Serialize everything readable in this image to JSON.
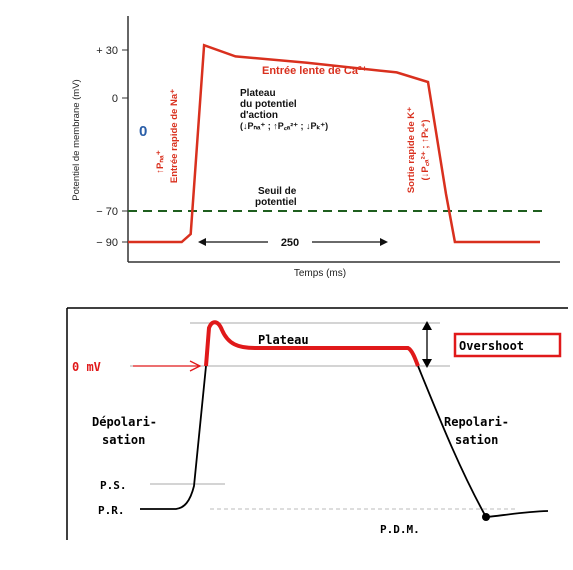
{
  "top_chart": {
    "ylabel": "Potentiel de membrane (mV)",
    "xlabel": "Temps (ms)",
    "yticks": [
      "+ 30",
      "0",
      "− 70",
      "− 90"
    ],
    "zero_marker": "0",
    "annotations": {
      "ca_entry": "Entrée lente de Ca²⁺",
      "plateau_1": "Plateau",
      "plateau_2": "du potentiel",
      "plateau_3": "d'action",
      "plateau_4": "(↓Pₙₐ⁺ ; ↑P꜀ₐ²⁺ ; ↓Pₖ⁺)",
      "seuil_1": "Seuil de",
      "seuil_2": "potentiel",
      "na_entry_1": "Entrée rapide de Na⁺",
      "na_entry_2": "↑Pₙₐ⁺",
      "k_exit_1": "Sortie rapide de K⁺",
      "k_exit_2": "(↓P꜀ₐ²⁺ ; ↑Pₖ⁺)",
      "duration": "250"
    },
    "colors": {
      "trace": "#d9301e",
      "threshold": "#1f5e1f",
      "text_red": "#d9301e",
      "marker": "#2a5ea8"
    }
  },
  "bottom_chart": {
    "labels": {
      "plateau": "Plateau",
      "overshoot": "Overshoot",
      "zero_mv": "0 mV",
      "depol_1": "Dépolari-",
      "depol_2": "sation",
      "repol_1": "Repolari-",
      "repol_2": "sation",
      "ps": "P.S.",
      "pr": "P.R.",
      "pdm": "P.D.M."
    },
    "colors": {
      "highlight": "#e0191a",
      "trace": "#000000"
    }
  },
  "chart_data": [
    {
      "type": "line",
      "title": "",
      "xlabel": "Temps (ms)",
      "ylabel": "Potentiel de membrane (mV)",
      "ylim": [
        -100,
        40
      ],
      "yticks": [
        30,
        0,
        -70,
        -90
      ],
      "series": [
        {
          "name": "",
          "x": [
            0,
            60,
            70,
            85,
            120,
            200,
            300,
            335,
            355,
            365,
            375,
            460
          ],
          "y": [
            -90,
            -90,
            -85,
            33,
            26,
            22,
            16,
            10,
            -60,
            -90,
            -90,
            -90
          ]
        }
      ],
      "threshold": {
        "value": -70
      },
      "duration_annotation_ms": 250,
      "grid": false
    },
    {
      "type": "line",
      "title": "",
      "xlabel": "",
      "ylabel": "",
      "series": [
        {
          "name": "",
          "values_shape": [
            "P.R.",
            "P.S.",
            "0 mV",
            "Overshoot",
            "Plateau",
            "Repolari-sation",
            "P.D.M."
          ]
        }
      ],
      "grid": false
    }
  ]
}
